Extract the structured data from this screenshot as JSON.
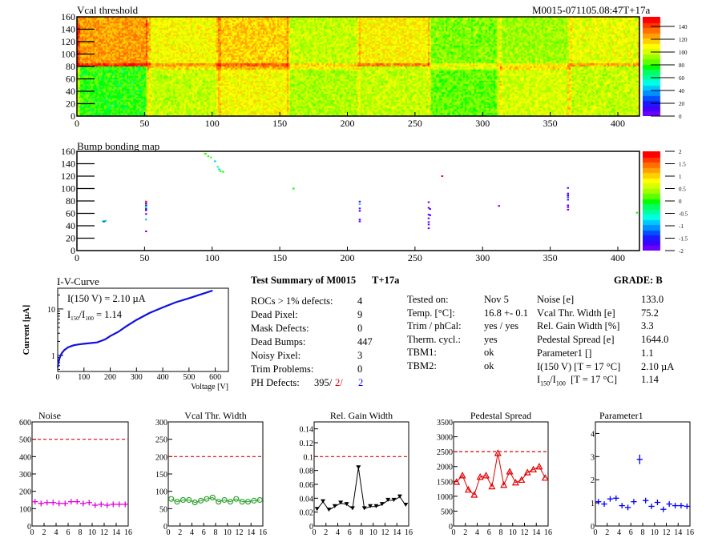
{
  "module_id": "M0015-071105.08:47T+17a",
  "colors": {
    "red": "#e00000",
    "blue": "#0000ff",
    "magenta": "#e000e0",
    "green": "#30a030",
    "black": "#000000",
    "iv_blue": "#1010e0"
  },
  "vcal_map": {
    "title": "Vcal threshold",
    "x_ticks": [
      "0",
      "50",
      "100",
      "150",
      "200",
      "250",
      "300",
      "350",
      "400"
    ],
    "y_ticks": [
      "0",
      "20",
      "40",
      "60",
      "80",
      "100",
      "120",
      "140",
      "160"
    ],
    "z_ticks": [
      "0",
      "20",
      "40",
      "60",
      "80",
      "100",
      "120",
      "140"
    ],
    "xlim": [
      0,
      416
    ],
    "ylim": [
      0,
      160
    ],
    "zlim": [
      0,
      155
    ]
  },
  "bump_map": {
    "title": "Bump bonding map",
    "x_ticks": [
      "0",
      "50",
      "100",
      "150",
      "200",
      "250",
      "300",
      "350",
      "400"
    ],
    "y_ticks": [
      "0",
      "20",
      "40",
      "60",
      "80",
      "100",
      "120",
      "140",
      "160"
    ],
    "z_ticks": [
      "2",
      "1.5",
      "1",
      "0.5",
      "0",
      "-0.5",
      "-1",
      "-1.5",
      "-2"
    ],
    "xlim": [
      0,
      416
    ],
    "ylim": [
      0,
      160
    ],
    "zlim": [
      -2,
      2
    ]
  },
  "iv_curve": {
    "title": "I-V-Curve",
    "xlabel": "Voltage [V]",
    "ylabel": "Current [µA]",
    "x_ticks": [
      "0",
      "100",
      "200",
      "300",
      "400",
      "500",
      "600"
    ],
    "y_ticks": [
      "1",
      "10"
    ],
    "annotation1": "I(150 V) = 2.10 µA",
    "annotation2_a": "I",
    "annotation2_sub1": "150",
    "annotation2_b": "/I",
    "annotation2_sub2": "100",
    "annotation2_c": " =  1.14"
  },
  "summary": {
    "title": "Test Summary of M0015",
    "tag": "T+17a",
    "grade": "GRADE:  B",
    "left": [
      {
        "label": "ROCs > 1% defects:",
        "value": "4"
      },
      {
        "label": "Dead Pixel:",
        "value": "9"
      },
      {
        "label": "Mask Defects:",
        "value": "0"
      },
      {
        "label": "Dead Bumps:",
        "value": "447"
      },
      {
        "label": "Noisy Pixel:",
        "value": "3"
      },
      {
        "label": "Trim Problems:",
        "value": "0"
      }
    ],
    "ph_defects": {
      "label": "PH Defects:",
      "v1": "395/",
      "v2": "2/",
      "v3": "2"
    },
    "middle": [
      {
        "label": "Tested on:",
        "value": "Nov 5"
      },
      {
        "label": "Temp. [°C]:",
        "value": "16.8 +- 0.1"
      },
      {
        "label": "Trim / phCal:",
        "value": "yes / yes"
      },
      {
        "label": "Therm. cycl.:",
        "value": "yes"
      },
      {
        "label": "TBM1:",
        "value": "ok"
      },
      {
        "label": "TBM2:",
        "value": "ok"
      }
    ],
    "right": [
      {
        "label": "Noise [e]",
        "value": "133.0"
      },
      {
        "label": "Vcal Thr. Width [e]",
        "value": "75.2"
      },
      {
        "label": "Rel. Gain Width [%]",
        "value": "3.3"
      },
      {
        "label": "Pedestal Spread [e]",
        "value": "1644.0"
      },
      {
        "label": "Parameter1 []",
        "value": "1.1"
      },
      {
        "label": "I(150 V) [T = 17 °C]",
        "value": "2.10 µA"
      }
    ],
    "ratio_row": {
      "label_a": "I",
      "sub1": "150",
      "label_b": "/I",
      "sub2": "100",
      "label_c": "  [T = 17 °C]",
      "value": "1.14"
    }
  },
  "chart_data": [
    {
      "type": "scatter",
      "title": "Noise",
      "style": "cross",
      "color": "#e000e0",
      "x": [
        0.5,
        1.5,
        2.5,
        3.5,
        4.5,
        5.5,
        6.5,
        7.5,
        8.5,
        9.5,
        10.5,
        11.5,
        12.5,
        13.5,
        14.5,
        15.5
      ],
      "values": [
        140,
        130,
        135,
        135,
        130,
        130,
        140,
        140,
        130,
        135,
        120,
        125,
        120,
        125,
        125,
        125
      ],
      "threshold": 500,
      "xlim": [
        0,
        16
      ],
      "ylim": [
        0,
        600
      ],
      "x_ticks": [
        "0",
        "2",
        "4",
        "6",
        "8",
        "10",
        "12",
        "14",
        "16"
      ],
      "y_ticks": [
        "0",
        "100",
        "200",
        "300",
        "400",
        "500",
        "600"
      ]
    },
    {
      "type": "line",
      "title": "Vcal Thr. Width",
      "style": "circle",
      "color": "#30a030",
      "x": [
        0.5,
        1.5,
        2.5,
        3.5,
        4.5,
        5.5,
        6.5,
        7.5,
        8.5,
        9.5,
        10.5,
        11.5,
        12.5,
        13.5,
        14.5,
        15.5
      ],
      "values": [
        78,
        70,
        75,
        75,
        68,
        73,
        78,
        82,
        70,
        75,
        70,
        78,
        70,
        70,
        73,
        75
      ],
      "threshold": 200,
      "xlim": [
        0,
        16
      ],
      "ylim": [
        0,
        300
      ],
      "x_ticks": [
        "0",
        "2",
        "4",
        "6",
        "8",
        "10",
        "12",
        "14",
        "16"
      ],
      "y_ticks": [
        "0",
        "50",
        "100",
        "150",
        "200",
        "250",
        "300"
      ]
    },
    {
      "type": "line",
      "title": "Rel. Gain Width",
      "style": "tri-down",
      "color": "#000000",
      "x": [
        0.5,
        1.5,
        2.5,
        3.5,
        4.5,
        5.5,
        6.5,
        7.5,
        8.5,
        9.5,
        10.5,
        11.5,
        12.5,
        13.5,
        14.5,
        15.5
      ],
      "values": [
        0.024,
        0.035,
        0.023,
        0.028,
        0.033,
        0.031,
        0.025,
        0.084,
        0.025,
        0.028,
        0.028,
        0.031,
        0.037,
        0.037,
        0.042,
        0.03
      ],
      "threshold": 0.1,
      "xlim": [
        0,
        16
      ],
      "ylim": [
        0,
        0.15
      ],
      "x_ticks": [
        "0",
        "2",
        "4",
        "6",
        "8",
        "10",
        "12",
        "14",
        "16"
      ],
      "y_ticks": [
        "0",
        "0.02",
        "0.04",
        "0.06",
        "0.08",
        "0.1",
        "0.12",
        "0.14"
      ]
    },
    {
      "type": "line",
      "title": "Pedestal Spread",
      "style": "tri-up",
      "color": "#e00000",
      "x": [
        0.5,
        1.5,
        2.5,
        3.5,
        4.5,
        5.5,
        6.5,
        7.5,
        8.5,
        9.5,
        10.5,
        11.5,
        12.5,
        13.5,
        14.5,
        15.5
      ],
      "values": [
        1480,
        1700,
        1220,
        1050,
        1650,
        1700,
        1330,
        2450,
        1380,
        1830,
        1460,
        1550,
        1800,
        1900,
        2000,
        1620
      ],
      "threshold": 2500,
      "xlim": [
        0,
        16
      ],
      "ylim": [
        0,
        3500
      ],
      "x_ticks": [
        "0",
        "2",
        "4",
        "6",
        "8",
        "10",
        "12",
        "14",
        "16"
      ],
      "y_ticks": [
        "0",
        "500",
        "1000",
        "1500",
        "2000",
        "2500",
        "3000",
        "3500"
      ]
    },
    {
      "type": "scatter",
      "title": "Parameter1",
      "style": "cross",
      "color": "#0000ff",
      "x": [
        0.5,
        1.5,
        2.5,
        3.5,
        4.5,
        5.5,
        6.5,
        7.5,
        8.5,
        9.5,
        10.5,
        11.5,
        12.5,
        13.5,
        14.5,
        15.5
      ],
      "values": [
        1.05,
        0.95,
        1.17,
        1.2,
        0.88,
        0.8,
        1.05,
        2.88,
        1.1,
        0.85,
        1.02,
        0.72,
        0.95,
        0.88,
        0.88,
        0.85
      ],
      "xlim": [
        0,
        16
      ],
      "ylim": [
        0,
        4.5
      ],
      "x_ticks": [
        "0",
        "2",
        "4",
        "6",
        "8",
        "10",
        "12",
        "14",
        "16"
      ],
      "y_ticks": [
        "0",
        "1",
        "2",
        "3",
        "4"
      ]
    }
  ]
}
